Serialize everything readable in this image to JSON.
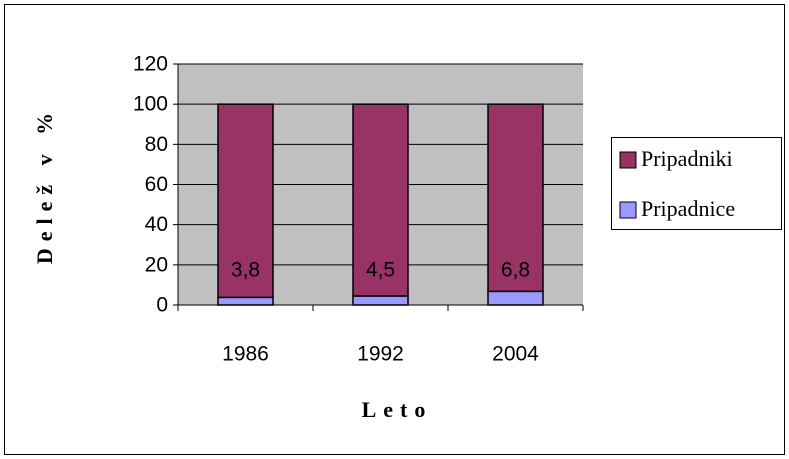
{
  "chart_data": {
    "type": "stacked_bar",
    "categories": [
      "1986",
      "1992",
      "2004"
    ],
    "series": [
      {
        "name": "Pripadniki",
        "color": "#993366",
        "values": [
          96.2,
          95.5,
          93.2
        ]
      },
      {
        "name": "Pripadnice",
        "color": "#9999ff",
        "values": [
          3.8,
          4.5,
          6.8
        ],
        "value_labels": [
          "3,8",
          "4,5",
          "6,8"
        ]
      }
    ],
    "ylim": [
      0,
      120
    ],
    "yticks": [
      0,
      20,
      40,
      60,
      80,
      100,
      120
    ],
    "grid": true,
    "y_label": "Delež v %",
    "x_label": "Leto",
    "legend": "right",
    "plot_background": "#c0c0c0"
  }
}
